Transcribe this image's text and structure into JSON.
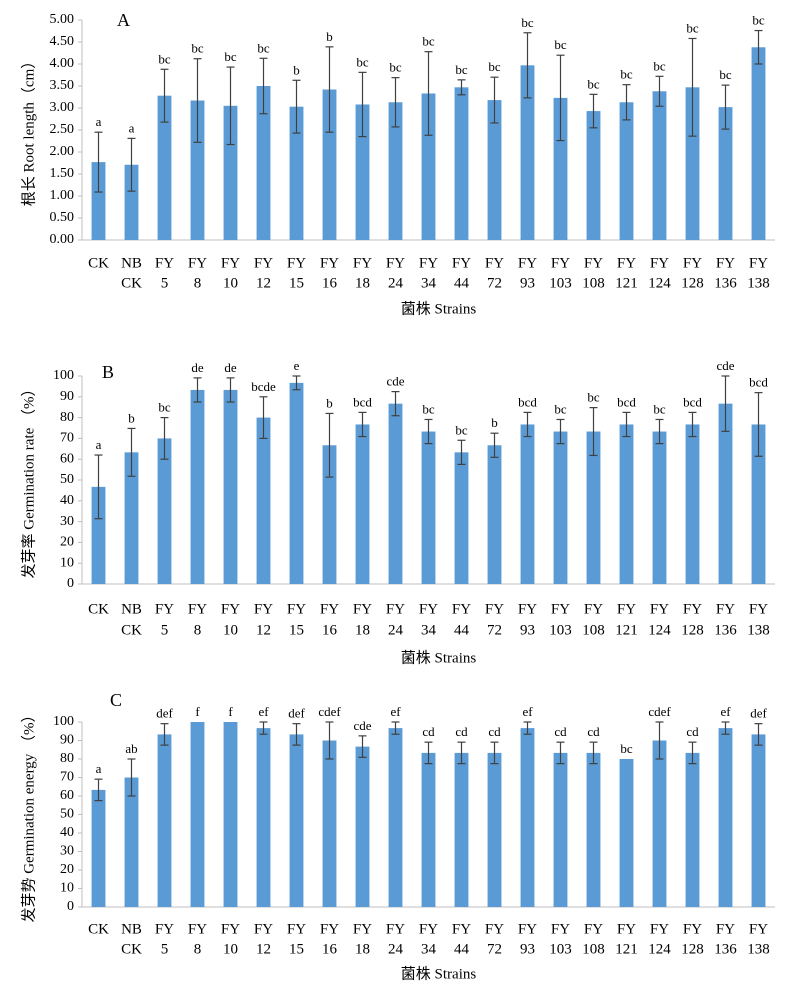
{
  "chart_data": [
    {
      "type": "bar",
      "panel_label": "A",
      "ylabel": "根长  Root length（cm）",
      "xlabel": "菌株 Strains",
      "ylim": [
        0,
        5
      ],
      "yticks": [
        "0.00",
        "0.50",
        "1.00",
        "1.50",
        "2.00",
        "2.50",
        "3.00",
        "3.50",
        "4.00",
        "4.50",
        "5.00"
      ],
      "categories": [
        {
          "line1": "CK",
          "line2": ""
        },
        {
          "line1": "NB",
          "line2": "CK"
        },
        {
          "line1": "FY",
          "line2": "5"
        },
        {
          "line1": "FY",
          "line2": "8"
        },
        {
          "line1": "FY",
          "line2": "10"
        },
        {
          "line1": "FY",
          "line2": "12"
        },
        {
          "line1": "FY",
          "line2": "15"
        },
        {
          "line1": "FY",
          "line2": "16"
        },
        {
          "line1": "FY",
          "line2": "18"
        },
        {
          "line1": "FY",
          "line2": "24"
        },
        {
          "line1": "FY",
          "line2": "34"
        },
        {
          "line1": "FY",
          "line2": "44"
        },
        {
          "line1": "FY",
          "line2": "72"
        },
        {
          "line1": "FY",
          "line2": "93"
        },
        {
          "line1": "FY",
          "line2": "103"
        },
        {
          "line1": "FY",
          "line2": "108"
        },
        {
          "line1": "FY",
          "line2": "121"
        },
        {
          "line1": "FY",
          "line2": "124"
        },
        {
          "line1": "FY",
          "line2": "128"
        },
        {
          "line1": "FY",
          "line2": "136"
        },
        {
          "line1": "FY",
          "line2": "138"
        }
      ],
      "values": [
        1.77,
        1.71,
        3.28,
        3.17,
        3.05,
        3.5,
        3.03,
        3.42,
        3.08,
        3.13,
        3.33,
        3.47,
        3.18,
        3.97,
        3.23,
        2.93,
        3.13,
        3.38,
        3.47,
        3.02,
        4.38
      ],
      "errors": [
        0.68,
        0.6,
        0.6,
        0.95,
        0.88,
        0.63,
        0.6,
        0.97,
        0.73,
        0.56,
        0.95,
        0.17,
        0.52,
        0.74,
        0.97,
        0.38,
        0.4,
        0.34,
        1.11,
        0.5,
        0.38
      ],
      "letters": [
        "a",
        "a",
        "bc",
        "bc",
        "bc",
        "bc",
        "b",
        "b",
        "bc",
        "bc",
        "bc",
        "bc",
        "bc",
        "bc",
        "bc",
        "bc",
        "bc",
        "bc",
        "bc",
        "bc",
        "bc"
      ]
    },
    {
      "type": "bar",
      "panel_label": "B",
      "ylabel": "发芽率 Germination rate （%）",
      "xlabel": "菌株 Strains",
      "ylim": [
        0,
        100
      ],
      "yticks": [
        "0",
        "10",
        "20",
        "30",
        "40",
        "50",
        "60",
        "70",
        "80",
        "90",
        "100"
      ],
      "categories": [
        {
          "line1": "CK",
          "line2": ""
        },
        {
          "line1": "NB",
          "line2": "CK"
        },
        {
          "line1": "FY",
          "line2": "5"
        },
        {
          "line1": "FY",
          "line2": "8"
        },
        {
          "line1": "FY",
          "line2": "10"
        },
        {
          "line1": "FY",
          "line2": "12"
        },
        {
          "line1": "FY",
          "line2": "15"
        },
        {
          "line1": "FY",
          "line2": "16"
        },
        {
          "line1": "FY",
          "line2": "18"
        },
        {
          "line1": "FY",
          "line2": "24"
        },
        {
          "line1": "FY",
          "line2": "34"
        },
        {
          "line1": "FY",
          "line2": "44"
        },
        {
          "line1": "FY",
          "line2": "72"
        },
        {
          "line1": "FY",
          "line2": "93"
        },
        {
          "line1": "FY",
          "line2": "103"
        },
        {
          "line1": "FY",
          "line2": "108"
        },
        {
          "line1": "FY",
          "line2": "121"
        },
        {
          "line1": "FY",
          "line2": "124"
        },
        {
          "line1": "FY",
          "line2": "128"
        },
        {
          "line1": "FY",
          "line2": "136"
        },
        {
          "line1": "FY",
          "line2": "138"
        }
      ],
      "values": [
        46.7,
        63.3,
        70.0,
        93.3,
        93.3,
        80.0,
        96.7,
        66.7,
        76.7,
        86.7,
        73.3,
        63.3,
        66.7,
        76.7,
        73.3,
        73.3,
        76.7,
        73.3,
        76.7,
        86.7,
        76.7
      ],
      "errors": [
        15.3,
        11.5,
        10.0,
        5.8,
        5.8,
        10.0,
        3.3,
        15.3,
        5.8,
        5.8,
        5.8,
        5.8,
        5.8,
        5.8,
        5.8,
        11.5,
        5.8,
        5.8,
        5.8,
        13.3,
        15.3
      ],
      "letters": [
        "a",
        "b",
        "bc",
        "de",
        "de",
        "bcde",
        "e",
        "b",
        "bcd",
        "cde",
        "bc",
        "bc",
        "b",
        "bcd",
        "bc",
        "bc",
        "bcd",
        "bc",
        "bcd",
        "cde",
        "bcd"
      ]
    },
    {
      "type": "bar",
      "panel_label": "C",
      "ylabel": "发芽势 Germination energy （%）",
      "xlabel": "菌株 Strains",
      "ylim": [
        0,
        100
      ],
      "yticks": [
        "0",
        "10",
        "20",
        "30",
        "40",
        "50",
        "60",
        "70",
        "80",
        "90",
        "100"
      ],
      "categories": [
        {
          "line1": "CK",
          "line2": ""
        },
        {
          "line1": "NB",
          "line2": "CK"
        },
        {
          "line1": "FY",
          "line2": "5"
        },
        {
          "line1": "FY",
          "line2": "8"
        },
        {
          "line1": "FY",
          "line2": "10"
        },
        {
          "line1": "FY",
          "line2": "12"
        },
        {
          "line1": "FY",
          "line2": "15"
        },
        {
          "line1": "FY",
          "line2": "16"
        },
        {
          "line1": "FY",
          "line2": "18"
        },
        {
          "line1": "FY",
          "line2": "24"
        },
        {
          "line1": "FY",
          "line2": "34"
        },
        {
          "line1": "FY",
          "line2": "44"
        },
        {
          "line1": "FY",
          "line2": "72"
        },
        {
          "line1": "FY",
          "line2": "93"
        },
        {
          "line1": "FY",
          "line2": "103"
        },
        {
          "line1": "FY",
          "line2": "108"
        },
        {
          "line1": "FY",
          "line2": "121"
        },
        {
          "line1": "FY",
          "line2": "124"
        },
        {
          "line1": "FY",
          "line2": "128"
        },
        {
          "line1": "FY",
          "line2": "136"
        },
        {
          "line1": "FY",
          "line2": "138"
        }
      ],
      "values": [
        63.3,
        70.0,
        93.3,
        100.0,
        100.0,
        96.7,
        93.3,
        90.0,
        86.7,
        96.7,
        83.3,
        83.3,
        83.3,
        96.7,
        83.3,
        83.3,
        80.0,
        90.0,
        83.3,
        96.7,
        93.3
      ],
      "errors": [
        5.8,
        10.0,
        5.8,
        0,
        0,
        3.3,
        5.8,
        10.0,
        5.8,
        3.3,
        5.8,
        5.8,
        5.8,
        3.3,
        5.8,
        5.8,
        0,
        10.0,
        5.8,
        3.3,
        5.8
      ],
      "letters": [
        "a",
        "ab",
        "def",
        "f",
        "f",
        "ef",
        "def",
        "cdef",
        "cde",
        "ef",
        "cd",
        "cd",
        "cd",
        "ef",
        "cd",
        "cd",
        "bc",
        "cdef",
        "cd",
        "ef",
        "def"
      ]
    }
  ],
  "colors": {
    "bar": "#5B9BD5",
    "error_bar": "#404040",
    "axis": "#bfbfbf"
  }
}
